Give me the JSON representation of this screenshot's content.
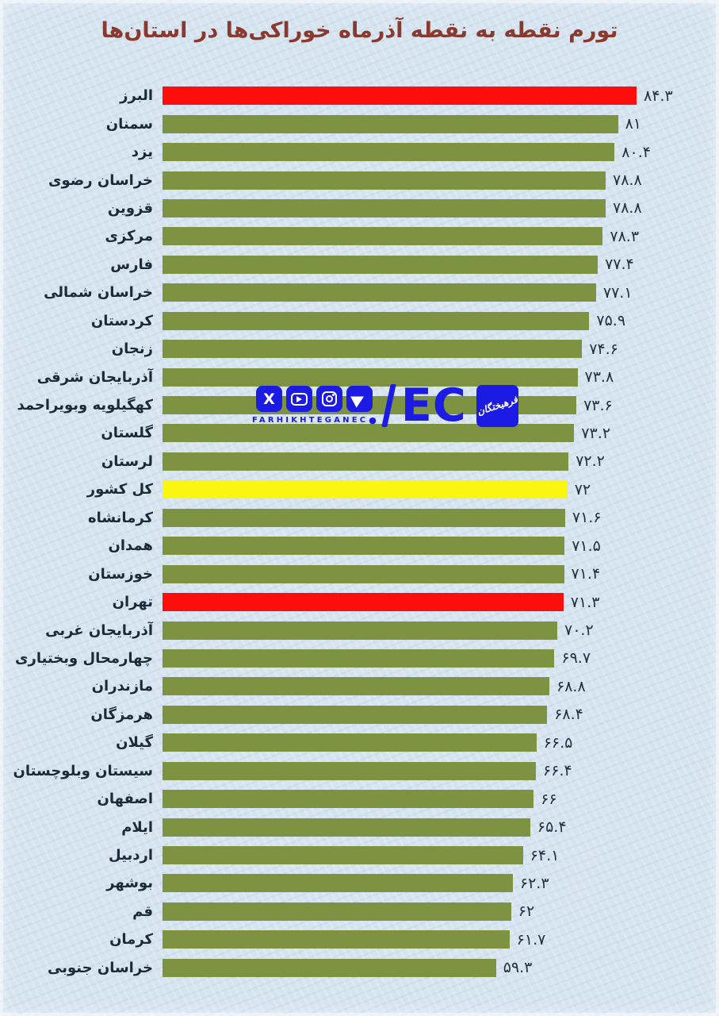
{
  "page": {
    "background": "#d6e4f0"
  },
  "title": {
    "color": "#8a392f"
  },
  "watermark": {
    "color": "#1b1be4",
    "handle": "FARHIKHTEGANEC",
    "handle_dot": "●",
    "brand_text": "EC",
    "brand_fa": "فرهیختگان",
    "icons": [
      "x-icon",
      "youtube-icon",
      "instagram-icon",
      "telegram-icon"
    ]
  },
  "chart_data": {
    "type": "bar",
    "orientation": "horizontal",
    "title": "تورم نقطه به نقطه آذرماه خوراکی‌ها در استان‌ها",
    "grid": false,
    "axis_labels_shown": false,
    "sort": "descending",
    "value_range": [
      0,
      84.3
    ],
    "categories": [
      "البرز",
      "سمنان",
      "یزد",
      "خراسان رضوی",
      "قزوین",
      "مرکزی",
      "فارس",
      "خراسان شمالی",
      "کردستان",
      "زنجان",
      "آذربایجان شرقی",
      "کهگیلویه وبویراحمد",
      "گلستان",
      "لرستان",
      "کل کشور",
      "کرمانشاه",
      "همدان",
      "خوزستان",
      "تهران",
      "آذربایجان غربی",
      "چهارمحال وبختیاری",
      "مازندران",
      "هرمزگان",
      "گیلان",
      "سیستان وبلوچستان",
      "اصفهان",
      "ایلام",
      "اردبیل",
      "بوشهر",
      "قم",
      "کرمان",
      "خراسان جنوبی"
    ],
    "values": [
      84.3,
      81,
      80.4,
      78.8,
      78.8,
      78.3,
      77.4,
      77.1,
      75.9,
      74.6,
      73.8,
      73.6,
      73.2,
      72.2,
      72,
      71.6,
      71.5,
      71.4,
      71.3,
      70.2,
      69.7,
      68.8,
      68.4,
      66.5,
      66.4,
      66,
      65.4,
      64.1,
      62.3,
      62,
      61.7,
      59.3
    ],
    "value_labels": [
      "۸۴.۳",
      "۸۱",
      "۸۰.۴",
      "۷۸.۸",
      "۷۸.۸",
      "۷۸.۳",
      "۷۷.۴",
      "۷۷.۱",
      "۷۵.۹",
      "۷۴.۶",
      "۷۳.۸",
      "۷۳.۶",
      "۷۳.۲",
      "۷۲.۲",
      "۷۲",
      "۷۱.۶",
      "۷۱.۵",
      "۷۱.۴",
      "۷۱.۳",
      "۷۰.۲",
      "۶۹.۷",
      "۶۸.۸",
      "۶۸.۴",
      "۶۶.۵",
      "۶۶.۴",
      "۶۶",
      "۶۵.۴",
      "۶۴.۱",
      "۶۲.۳",
      "۶۲",
      "۶۱.۷",
      "۵۹.۳"
    ],
    "bar_colors": [
      "highlight",
      "default",
      "default",
      "default",
      "default",
      "default",
      "default",
      "default",
      "default",
      "default",
      "default",
      "default",
      "default",
      "default",
      "total",
      "default",
      "default",
      "default",
      "highlight",
      "default",
      "default",
      "default",
      "default",
      "default",
      "default",
      "default",
      "default",
      "default",
      "default",
      "default",
      "default",
      "default"
    ],
    "colors": {
      "default": "#7d9342",
      "highlight": "#fa0e0e",
      "total": "#fbf512"
    },
    "highlighted_bars": [
      "البرز",
      "تهران"
    ],
    "total_bar": "کل کشور"
  }
}
